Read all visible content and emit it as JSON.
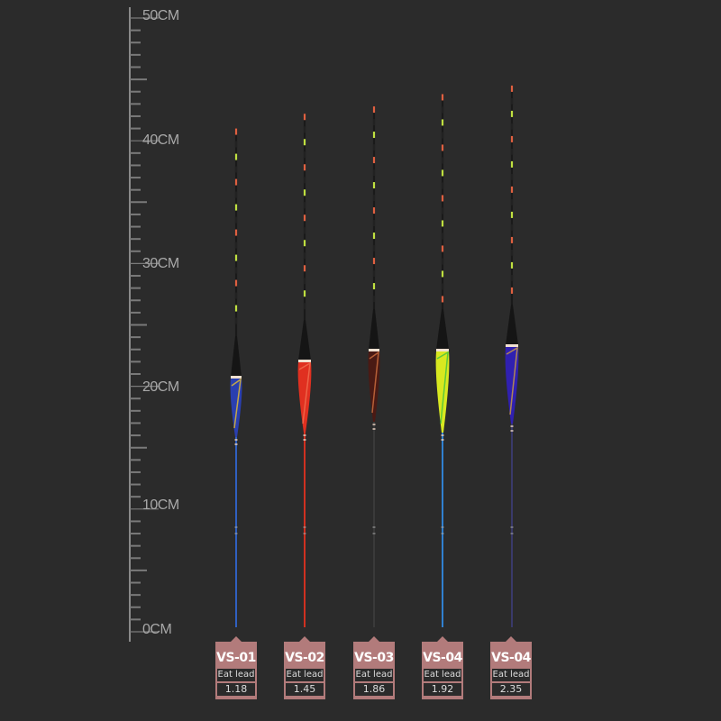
{
  "ruler": {
    "unit": "CM",
    "labels": [
      "50CM",
      "40CM",
      "30CM",
      "20CM",
      "10CM",
      "0CM"
    ],
    "range_cm": [
      0,
      50
    ]
  },
  "floats": [
    {
      "model": "VS-01",
      "eat_lead_label": "Eat lead",
      "eat_lead": "1.18",
      "body_color": "#2a3fb0",
      "accent_color": "#e8c030",
      "stem_color": "#3060c0",
      "length_cm": 41
    },
    {
      "model": "VS-02",
      "eat_lead_label": "Eat lead",
      "eat_lead": "1.45",
      "body_color": "#e03020",
      "accent_color": "#f07050",
      "stem_color": "#d03020",
      "length_cm": 42.2
    },
    {
      "model": "VS-03",
      "eat_lead_label": "Eat lead",
      "eat_lead": "1.86",
      "body_color": "#4a1a14",
      "accent_color": "#d07040",
      "stem_color": "#3a3a3a",
      "length_cm": 42.8
    },
    {
      "model": "VS-04",
      "eat_lead_label": "Eat lead",
      "eat_lead": "1.92",
      "body_color": "#d8e820",
      "accent_color": "#40c040",
      "stem_color": "#3080d0",
      "length_cm": 43.8
    },
    {
      "model": "VS-04",
      "eat_lead_label": "Eat lead",
      "eat_lead": "2.35",
      "body_color": "#3020b0",
      "accent_color": "#d0a040",
      "stem_color": "#3a3a6a",
      "length_cm": 44.5
    }
  ]
}
